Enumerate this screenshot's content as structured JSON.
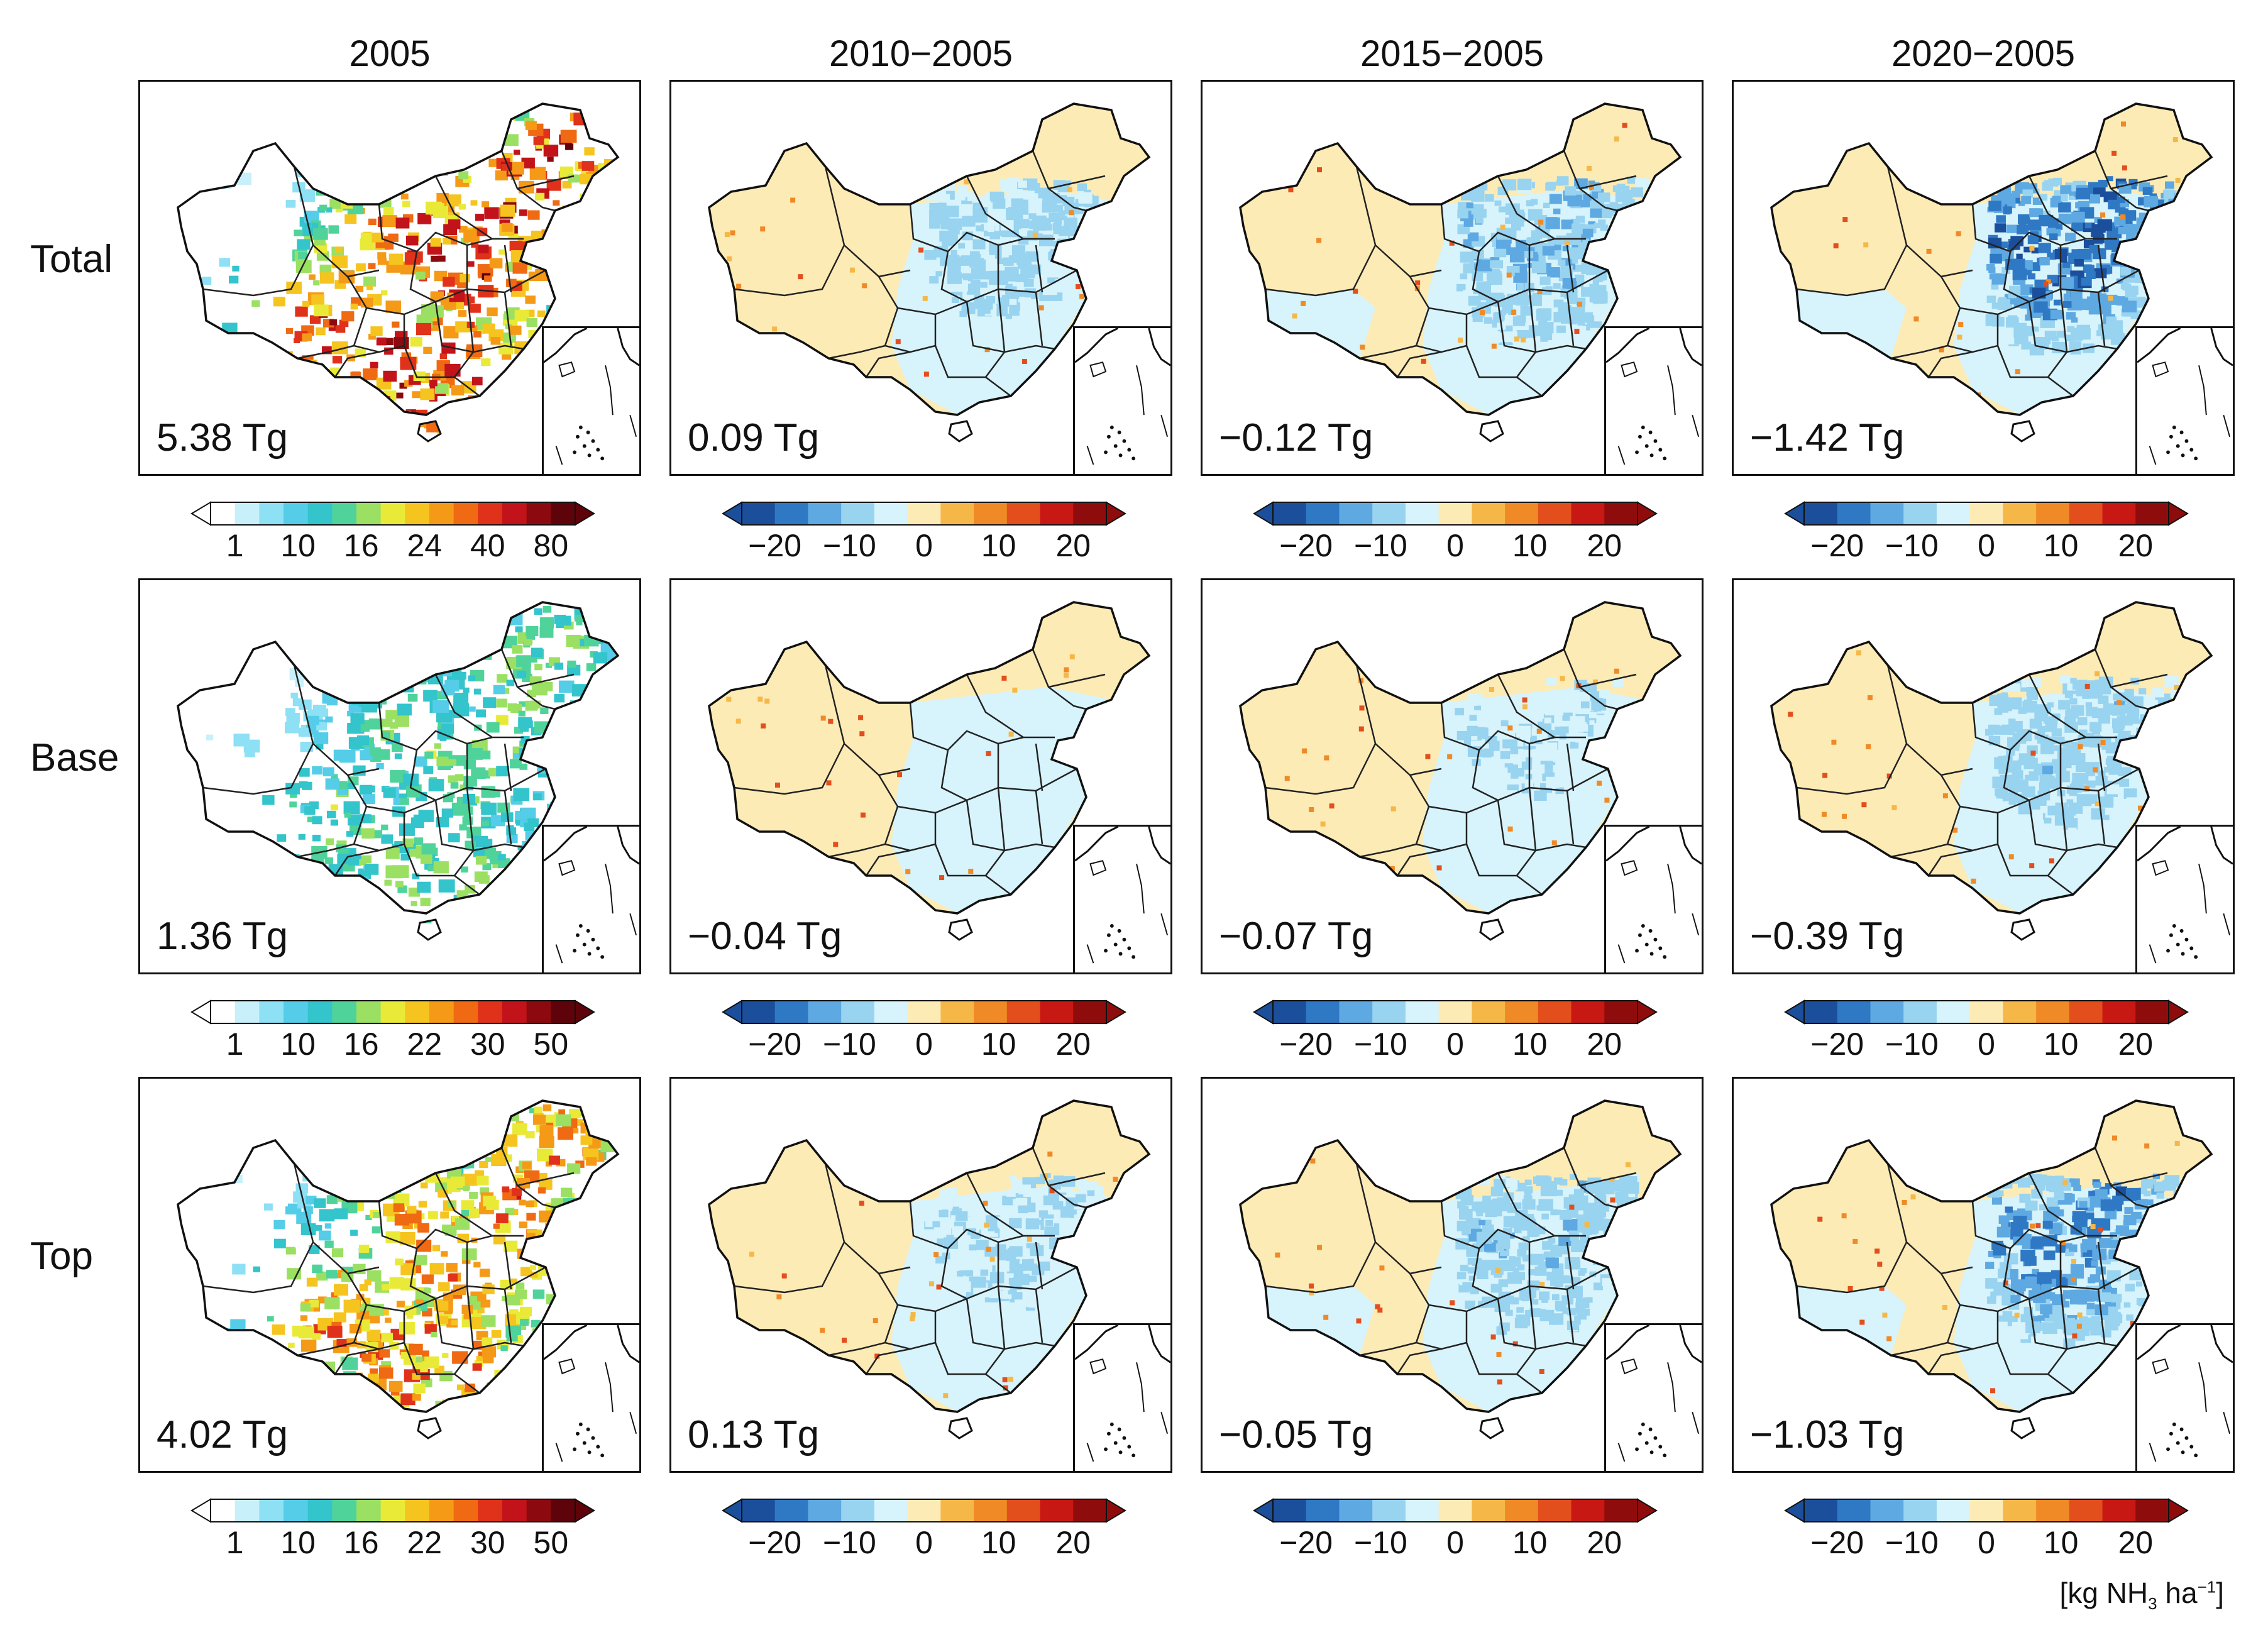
{
  "columns": [
    "2005",
    "2010−2005",
    "2015−2005",
    "2020−2005"
  ],
  "rows": [
    {
      "label": "Total",
      "totals": [
        "5.38 Tg",
        "0.09 Tg",
        "−0.12 Tg",
        "−1.42 Tg"
      ],
      "abs_ticks": [
        "1",
        "10",
        "16",
        "24",
        "40",
        "80"
      ]
    },
    {
      "label": "Base",
      "totals": [
        "1.36 Tg",
        "−0.04 Tg",
        "−0.07 Tg",
        "−0.39 Tg"
      ],
      "abs_ticks": [
        "1",
        "10",
        "16",
        "22",
        "30",
        "50"
      ]
    },
    {
      "label": "Top",
      "totals": [
        "4.02 Tg",
        "0.13 Tg",
        "−0.05 Tg",
        "−1.03 Tg"
      ],
      "abs_ticks": [
        "1",
        "10",
        "16",
        "22",
        "30",
        "50"
      ]
    }
  ],
  "diff_ticks": [
    "−20",
    "−10",
    "0",
    "10",
    "20"
  ],
  "units": {
    "prefix": "[kg NH",
    "sub": "3",
    "mid": " ha",
    "sup": "−1",
    "suffix": "]"
  },
  "colors": {
    "abs_scale": [
      "#ffffff",
      "#c8f0fa",
      "#8ee0f4",
      "#55cde8",
      "#33c4cc",
      "#4fd39a",
      "#9be062",
      "#e9ea37",
      "#f5c41f",
      "#f59a17",
      "#ef6a12",
      "#e0321a",
      "#c2131a",
      "#8c0a0f",
      "#5e0309"
    ],
    "diff_scale": [
      "#1b4f9c",
      "#2f78c4",
      "#5ea9e2",
      "#98d3f0",
      "#d7f3fb",
      "#fdebb6",
      "#f5b848",
      "#ef8a26",
      "#e34e1d",
      "#c71813",
      "#8f0c0c"
    ],
    "frame": "#111111",
    "taiwan_fill": "#8a8a8a"
  }
}
